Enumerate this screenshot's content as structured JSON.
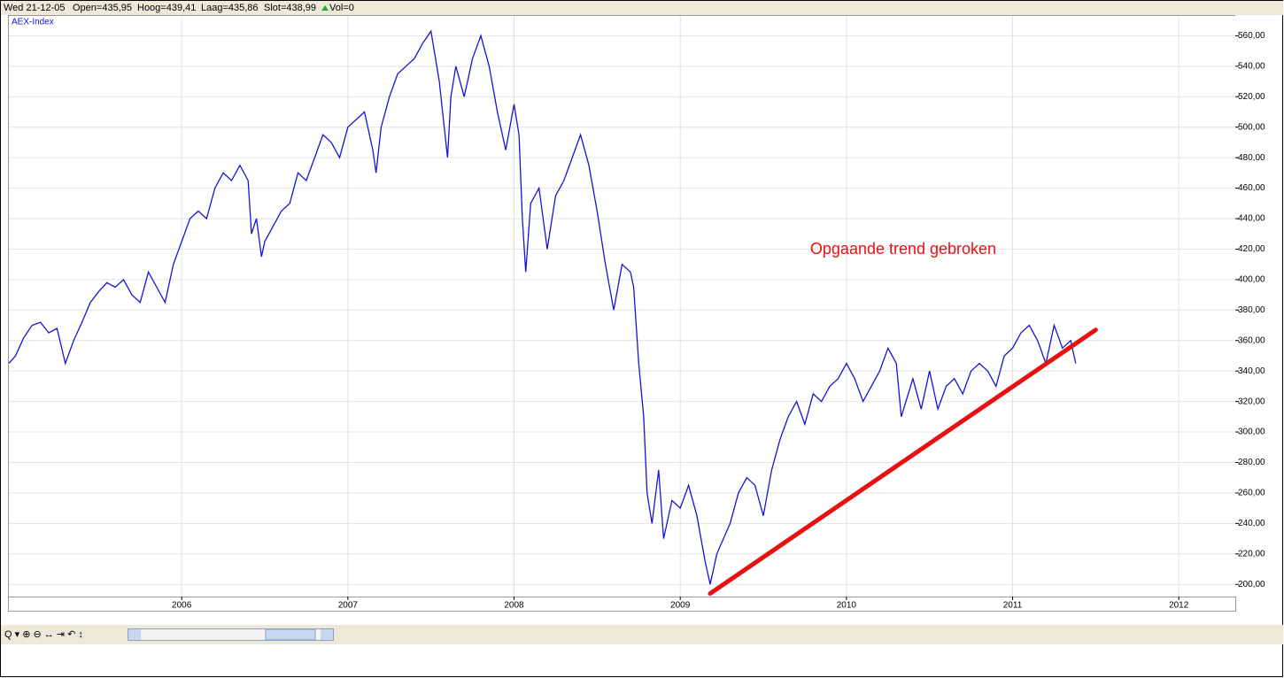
{
  "header": {
    "date": "Wed 21-12-05",
    "open": "Open=435,95",
    "high": "Hoog=439,41",
    "low": "Laag=435,86",
    "close": "Slot=438,99",
    "volume": "Vol=0"
  },
  "chart_data": {
    "type": "line",
    "annotation": "Opgaande trend gebroken",
    "xlim": [
      2004.96,
      2012.34
    ],
    "xticks": [
      2006,
      2007,
      2008,
      2009,
      2010,
      2011,
      2012
    ],
    "ylim": [
      192,
      573
    ],
    "yticks": [
      {
        "value": 200,
        "label": "200,00"
      },
      {
        "value": 220,
        "label": "220,00"
      },
      {
        "value": 240,
        "label": "240,00"
      },
      {
        "value": 260,
        "label": "260,00"
      },
      {
        "value": 280,
        "label": "280,00"
      },
      {
        "value": 300,
        "label": "300,00"
      },
      {
        "value": 320,
        "label": "320,00"
      },
      {
        "value": 340,
        "label": "340,00"
      },
      {
        "value": 360,
        "label": "360,00"
      },
      {
        "value": 380,
        "label": "380,00"
      },
      {
        "value": 400,
        "label": "400,00"
      },
      {
        "value": 420,
        "label": "420,00"
      },
      {
        "value": 440,
        "label": "440,00"
      },
      {
        "value": 460,
        "label": "460,00"
      },
      {
        "value": 480,
        "label": "480,00"
      },
      {
        "value": 500,
        "label": "500,00"
      },
      {
        "value": 520,
        "label": "520,00"
      },
      {
        "value": 540,
        "label": "540,00"
      },
      {
        "value": 560,
        "label": "560,00"
      }
    ],
    "grid": true,
    "series": [
      {
        "name": "AEX-Index",
        "color": "#1414d8",
        "x": [
          2004.96,
          2005.0,
          2005.05,
          2005.1,
          2005.15,
          2005.2,
          2005.25,
          2005.3,
          2005.35,
          2005.4,
          2005.45,
          2005.5,
          2005.55,
          2005.6,
          2005.65,
          2005.7,
          2005.75,
          2005.8,
          2005.85,
          2005.9,
          2005.95,
          2006.0,
          2006.05,
          2006.1,
          2006.15,
          2006.2,
          2006.25,
          2006.3,
          2006.35,
          2006.4,
          2006.42,
          2006.45,
          2006.48,
          2006.5,
          2006.55,
          2006.6,
          2006.65,
          2006.7,
          2006.75,
          2006.8,
          2006.85,
          2006.9,
          2006.95,
          2007.0,
          2007.05,
          2007.1,
          2007.15,
          2007.17,
          2007.2,
          2007.25,
          2007.3,
          2007.35,
          2007.4,
          2007.45,
          2007.5,
          2007.55,
          2007.6,
          2007.62,
          2007.65,
          2007.7,
          2007.75,
          2007.8,
          2007.85,
          2007.9,
          2007.95,
          2008.0,
          2008.03,
          2008.05,
          2008.07,
          2008.1,
          2008.15,
          2008.2,
          2008.25,
          2008.3,
          2008.35,
          2008.4,
          2008.45,
          2008.5,
          2008.55,
          2008.6,
          2008.65,
          2008.7,
          2008.72,
          2008.75,
          2008.78,
          2008.8,
          2008.83,
          2008.87,
          2008.9,
          2008.95,
          2009.0,
          2009.05,
          2009.1,
          2009.15,
          2009.18,
          2009.22,
          2009.3,
          2009.35,
          2009.4,
          2009.45,
          2009.5,
          2009.55,
          2009.6,
          2009.65,
          2009.7,
          2009.75,
          2009.8,
          2009.85,
          2009.9,
          2009.95,
          2010.0,
          2010.05,
          2010.1,
          2010.15,
          2010.2,
          2010.25,
          2010.3,
          2010.33,
          2010.4,
          2010.45,
          2010.5,
          2010.55,
          2010.6,
          2010.65,
          2010.7,
          2010.75,
          2010.8,
          2010.85,
          2010.9,
          2010.95,
          2011.0,
          2011.05,
          2011.1,
          2011.15,
          2011.2,
          2011.25,
          2011.3,
          2011.35,
          2011.38
        ],
        "values": [
          345,
          350,
          362,
          370,
          372,
          365,
          368,
          345,
          360,
          372,
          385,
          392,
          398,
          395,
          400,
          390,
          385,
          405,
          395,
          385,
          410,
          425,
          440,
          445,
          440,
          460,
          470,
          465,
          475,
          465,
          430,
          440,
          415,
          425,
          435,
          445,
          450,
          470,
          465,
          480,
          495,
          490,
          480,
          500,
          505,
          510,
          485,
          470,
          500,
          520,
          535,
          540,
          545,
          555,
          563,
          530,
          480,
          520,
          540,
          520,
          545,
          560,
          540,
          510,
          485,
          515,
          495,
          440,
          405,
          450,
          460,
          420,
          455,
          465,
          480,
          495,
          475,
          445,
          410,
          380,
          410,
          405,
          395,
          345,
          310,
          260,
          240,
          275,
          230,
          255,
          250,
          265,
          245,
          215,
          200,
          220,
          240,
          260,
          270,
          265,
          245,
          275,
          295,
          310,
          320,
          305,
          325,
          320,
          330,
          335,
          345,
          335,
          320,
          330,
          340,
          355,
          345,
          310,
          335,
          315,
          340,
          315,
          330,
          335,
          325,
          340,
          345,
          340,
          330,
          350,
          355,
          365,
          370,
          360,
          345,
          370,
          355,
          360,
          345
        ]
      }
    ],
    "trendline": {
      "x": [
        2009.18,
        2011.5
      ],
      "y": [
        194,
        367
      ],
      "color": "#e81010"
    }
  }
}
